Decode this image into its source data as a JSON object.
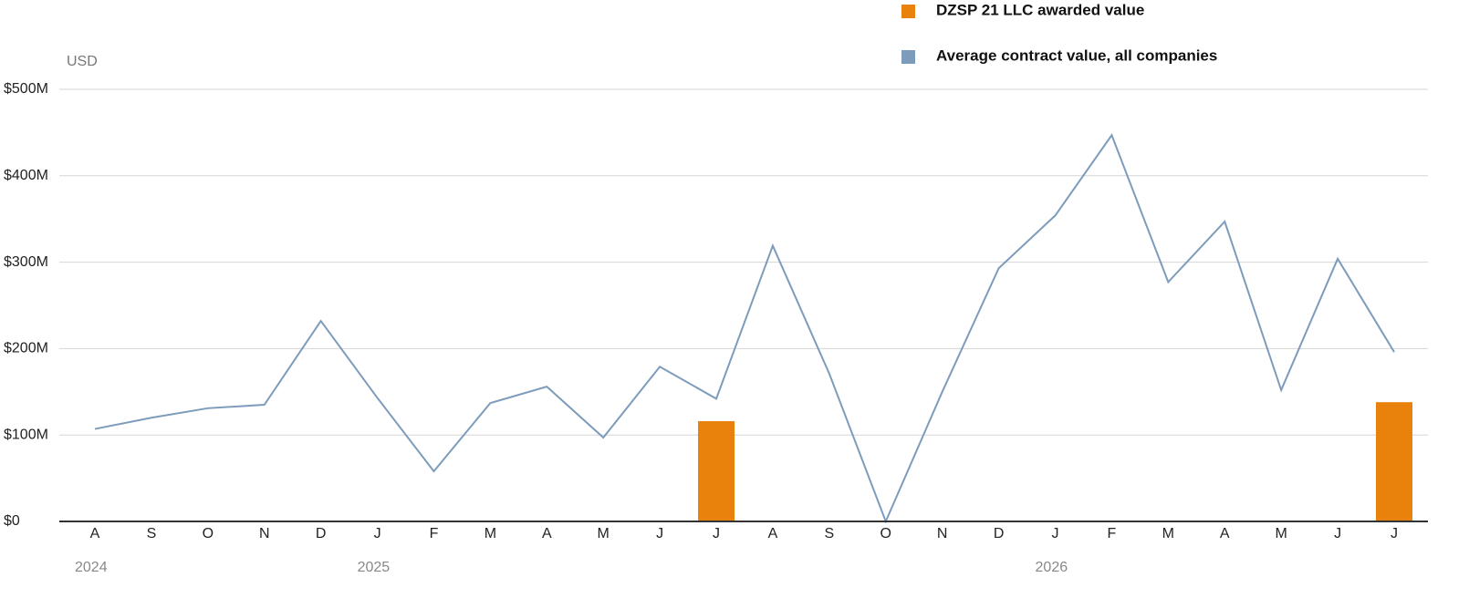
{
  "chart_data": {
    "type": "combo",
    "y_unit": "USD",
    "categories": [
      "A",
      "S",
      "O",
      "N",
      "D",
      "J",
      "F",
      "M",
      "A",
      "M",
      "J",
      "J",
      "A",
      "S",
      "O",
      "N",
      "D",
      "J",
      "F",
      "M",
      "A",
      "M",
      "J",
      "J"
    ],
    "x_groups": [
      "2024",
      null,
      null,
      null,
      null,
      "2025",
      null,
      null,
      null,
      null,
      null,
      null,
      null,
      null,
      null,
      null,
      null,
      "2026",
      null,
      null,
      null,
      null,
      null,
      null
    ],
    "series": [
      {
        "name": "DZSP 21 LLC awarded value",
        "type": "bar",
        "color": "#e8820c",
        "values": [
          null,
          null,
          null,
          null,
          null,
          null,
          null,
          null,
          null,
          null,
          null,
          116,
          null,
          null,
          null,
          null,
          null,
          null,
          null,
          null,
          null,
          null,
          null,
          138
        ]
      },
      {
        "name": "Average contract value, all companies",
        "type": "line",
        "color": "#7d9cbb",
        "values": [
          107,
          120,
          131,
          135,
          232,
          143,
          58,
          137,
          156,
          97,
          179,
          142,
          319,
          171,
          0,
          150,
          293,
          354,
          447,
          277,
          347,
          152,
          304,
          196
        ]
      }
    ],
    "ylim": [
      0,
      500
    ],
    "yticks": [
      {
        "value": 0,
        "label": "$0"
      },
      {
        "value": 100,
        "label": "$100M"
      },
      {
        "value": 200,
        "label": "$200M"
      },
      {
        "value": 300,
        "label": "$300M"
      },
      {
        "value": 400,
        "label": "$400M"
      },
      {
        "value": 500,
        "label": "$500M"
      }
    ],
    "grid": true
  }
}
